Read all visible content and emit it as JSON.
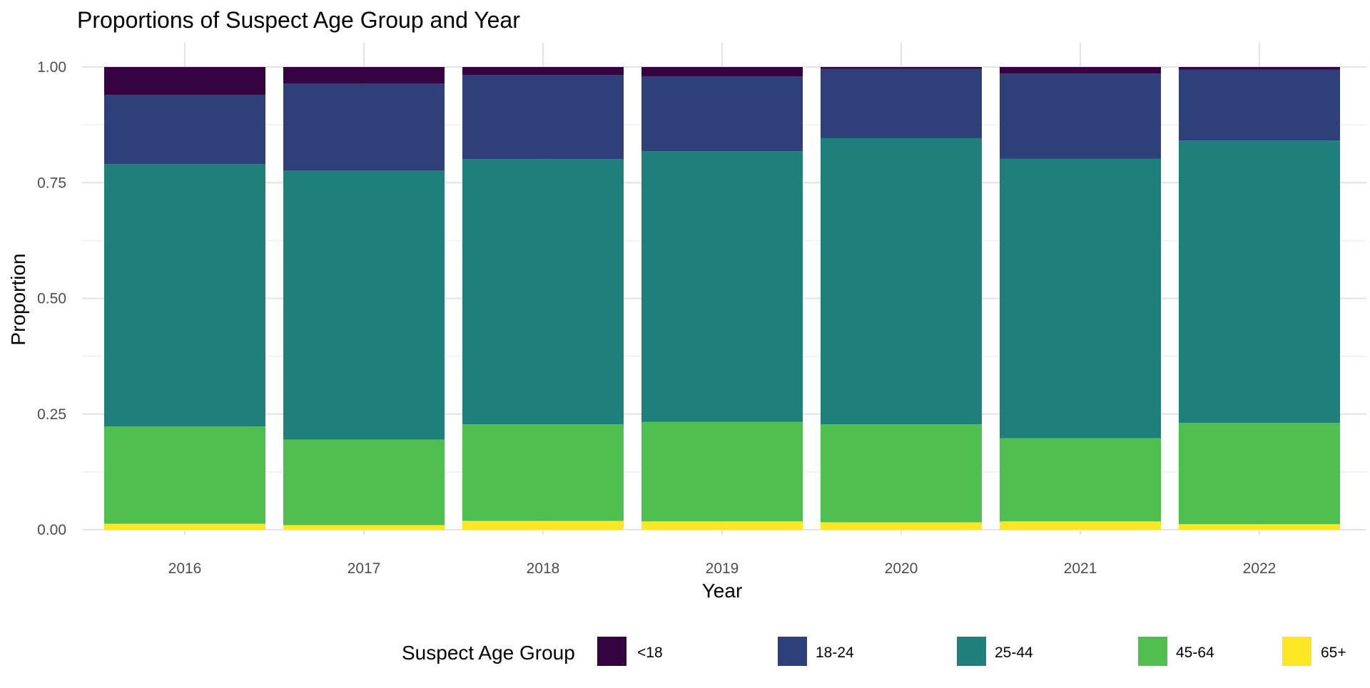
{
  "chart_data": {
    "type": "bar",
    "stacked": true,
    "title": "Proportions of Suspect Age Group and Year",
    "xlabel": "Year",
    "ylabel": "Proportion",
    "categories": [
      "2016",
      "2017",
      "2018",
      "2019",
      "2020",
      "2021",
      "2022"
    ],
    "ylim": [
      0,
      1
    ],
    "yticks": [
      "0.00",
      "0.25",
      "0.50",
      "0.75",
      "1.00"
    ],
    "grid": true,
    "legend_position": "bottom",
    "legend_title": "Suspect Age Group",
    "series": [
      {
        "name": "65+",
        "color": "#FDE725",
        "values": [
          0.013,
          0.01,
          0.019,
          0.018,
          0.016,
          0.018,
          0.012
        ]
      },
      {
        "name": "45-64",
        "color": "#4FC04F",
        "values": [
          0.21,
          0.185,
          0.209,
          0.215,
          0.212,
          0.18,
          0.219
        ]
      },
      {
        "name": "25-44",
        "color": "#1F7F7A",
        "values": [
          0.567,
          0.581,
          0.573,
          0.585,
          0.618,
          0.604,
          0.61
        ]
      },
      {
        "name": "18-24",
        "color": "#2E3F7A",
        "values": [
          0.15,
          0.188,
          0.182,
          0.162,
          0.15,
          0.184,
          0.153
        ]
      },
      {
        "name": "<18",
        "color": "#350440",
        "values": [
          0.06,
          0.036,
          0.017,
          0.02,
          0.004,
          0.014,
          0.006
        ]
      }
    ],
    "legend_order": [
      "<18",
      "18-24",
      "25-44",
      "45-64",
      "65+"
    ]
  }
}
